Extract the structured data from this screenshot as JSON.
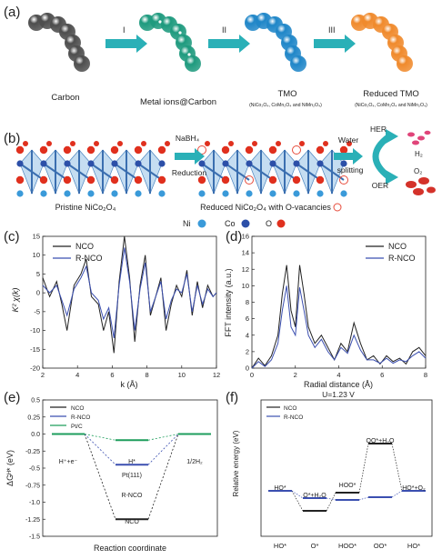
{
  "panels": {
    "a": {
      "label": "(a)",
      "steps": [
        "I",
        "II",
        "III"
      ],
      "stages": [
        {
          "name": "Carbon",
          "sub": ""
        },
        {
          "name": "Metal ions@Carbon",
          "sub": ""
        },
        {
          "name": "TMO",
          "sub": "(NiCo₂O₄, CoMn₂O₄ and NiMn₂O₄)"
        },
        {
          "name": "Reduced TMO",
          "sub": "(NiCo₂O₄, CoMn₂O₄ and NiMn₂O₄)"
        }
      ],
      "colors": {
        "carbon": "#4d4d4d",
        "metal": "#1e9a7e",
        "tmo": "#1f86c8",
        "reduced": "#f08a2c",
        "arrow": "#2ab0b7"
      }
    },
    "b": {
      "label": "(b)",
      "pristine": "Pristine NiCo₂O₄",
      "reduced": "Reduced NiCo₂O₄ with O-vacancies",
      "reagent1": "NaBH₄",
      "reagent2": "Reduction",
      "water1": "Water",
      "water2": "splitting",
      "her": "HER",
      "oer": "OER",
      "h2": "H₂",
      "o2": "O₂",
      "legend": {
        "ni": "Ni",
        "co": "Co",
        "o": "O"
      }
    },
    "c": {
      "label": "(c)",
      "ylabel": "K² χ(k)",
      "xlabel": "k (Å)",
      "legend": [
        "NCO",
        "R-NCO"
      ]
    },
    "d": {
      "label": "(d)",
      "ylabel": "FFT intensity (a.u.)",
      "xlabel": "Radial distance (Å)",
      "legend": [
        "NCO",
        "R-NCO"
      ]
    },
    "e": {
      "label": "(e)",
      "ylabel": "ΔGᴴ* (eV)",
      "xlabel": "Reaction coordinate",
      "legend": [
        "NCO",
        "R-NCO",
        "Pt/C"
      ],
      "annotations": {
        "start": "H⁺+e⁻",
        "mid": "H*",
        "end": "1/2H₂",
        "pt": "Pt(111)",
        "rnco": "R-NCO",
        "nco": "NCO"
      }
    },
    "f": {
      "label": "(f)",
      "title": "U=1.23 V",
      "ylabel": "Relative energy (eV)",
      "legend": [
        "NCO",
        "R-NCO"
      ],
      "annotations": {
        "ho": "HO*",
        "o": "O*+H₂O",
        "hoo": "HOO*",
        "oo": "OO*+H₂O",
        "end": "HO*+O₂"
      }
    }
  },
  "chart_data": [
    {
      "type": "line",
      "panel": "c",
      "xlabel": "k (Å)",
      "ylabel": "K² χ(k)",
      "xlim": [
        2,
        12
      ],
      "ylim": [
        -20,
        15
      ],
      "xticks": [
        2,
        4,
        6,
        8,
        10,
        12
      ],
      "yticks": [
        -20,
        -15,
        -10,
        -5,
        0,
        5,
        10,
        15
      ],
      "legend_position": "top-left",
      "series": [
        {
          "name": "NCO",
          "color": "#222222",
          "x": [
            2.0,
            2.4,
            2.8,
            3.1,
            3.4,
            3.8,
            4.2,
            4.5,
            4.8,
            5.2,
            5.5,
            5.8,
            6.1,
            6.4,
            6.7,
            7.0,
            7.3,
            7.6,
            7.9,
            8.2,
            8.5,
            8.8,
            9.1,
            9.4,
            9.7,
            10.0,
            10.3,
            10.6,
            10.9,
            11.2,
            11.5,
            11.8,
            12.0
          ],
          "y": [
            4,
            -1,
            3,
            -3,
            -10,
            2,
            5,
            9,
            -1,
            -3,
            -10,
            -5,
            -16,
            3,
            15,
            4,
            -13,
            2,
            10,
            -6,
            -1,
            4,
            -10,
            -3,
            2,
            -1,
            6,
            -6,
            3,
            -4,
            2,
            -1,
            0
          ]
        },
        {
          "name": "R-NCO",
          "color": "#3b4fb0",
          "x": [
            2.0,
            2.4,
            2.8,
            3.1,
            3.4,
            3.8,
            4.2,
            4.5,
            4.8,
            5.2,
            5.5,
            5.8,
            6.1,
            6.4,
            6.7,
            7.0,
            7.3,
            7.6,
            7.9,
            8.2,
            8.5,
            8.8,
            9.1,
            9.4,
            9.7,
            10.0,
            10.3,
            10.6,
            10.9,
            11.2,
            11.5,
            11.8,
            12.0
          ],
          "y": [
            2,
            0,
            2,
            -2,
            -6,
            1,
            4,
            7,
            0,
            -2,
            -7,
            -4,
            -12,
            2,
            12,
            3,
            -10,
            1,
            8,
            -5,
            -1,
            3,
            -7,
            -2,
            1,
            0,
            5,
            -5,
            2,
            -3,
            1,
            -1,
            0
          ]
        }
      ]
    },
    {
      "type": "line",
      "panel": "d",
      "xlabel": "Radial distance (Å)",
      "ylabel": "FFT intensity (a.u.)",
      "xlim": [
        0,
        8
      ],
      "ylim": [
        0,
        16
      ],
      "xticks": [
        0,
        2,
        4,
        6,
        8
      ],
      "yticks": [
        0,
        2,
        4,
        6,
        8,
        10,
        12,
        14,
        16
      ],
      "legend_position": "top-right",
      "series": [
        {
          "name": "NCO",
          "color": "#222222",
          "x": [
            0.0,
            0.3,
            0.6,
            0.9,
            1.2,
            1.4,
            1.6,
            1.8,
            2.0,
            2.2,
            2.4,
            2.6,
            2.9,
            3.2,
            3.5,
            3.8,
            4.1,
            4.4,
            4.7,
            5.0,
            5.3,
            5.6,
            5.9,
            6.2,
            6.5,
            6.8,
            7.1,
            7.4,
            7.7,
            8.0
          ],
          "y": [
            0,
            1.2,
            0.3,
            1.5,
            4,
            9,
            12.5,
            7,
            5,
            12.5,
            9,
            5,
            3,
            4,
            2.5,
            1,
            3,
            2,
            5.5,
            3,
            1,
            1.5,
            0.5,
            1.5,
            0.8,
            1.2,
            0.5,
            2,
            2.5,
            1.5
          ]
        },
        {
          "name": "R-NCO",
          "color": "#3b4fb0",
          "x": [
            0.0,
            0.3,
            0.6,
            0.9,
            1.2,
            1.4,
            1.6,
            1.8,
            2.0,
            2.2,
            2.4,
            2.6,
            2.9,
            3.2,
            3.5,
            3.8,
            4.1,
            4.4,
            4.7,
            5.0,
            5.3,
            5.6,
            5.9,
            6.2,
            6.5,
            6.8,
            7.1,
            7.4,
            7.7,
            8.0
          ],
          "y": [
            0,
            0.8,
            0.2,
            1,
            3,
            7,
            10,
            5,
            4,
            9.8,
            7,
            4,
            2.5,
            3.5,
            2,
            1,
            2.5,
            1.8,
            4,
            2.2,
            1,
            1,
            0.6,
            1.2,
            0.6,
            1,
            0.8,
            1.5,
            2,
            1.2
          ]
        }
      ]
    },
    {
      "type": "line",
      "panel": "e",
      "xlabel": "Reaction coordinate",
      "ylabel": "ΔGᴴ* (eV)",
      "ylim": [
        -1.5,
        0.5
      ],
      "yticks": [
        -1.5,
        -1.25,
        -1.0,
        -0.75,
        -0.5,
        -0.25,
        0.0,
        0.25,
        0.5
      ],
      "legend_position": "top-left",
      "states": [
        "H⁺+e⁻",
        "H*",
        "1/2H₂"
      ],
      "series": [
        {
          "name": "NCO",
          "color": "#222222",
          "values": [
            0,
            -1.25,
            0
          ]
        },
        {
          "name": "R-NCO",
          "color": "#3b4fb0",
          "values": [
            0,
            -0.45,
            0
          ]
        },
        {
          "name": "Pt/C",
          "color": "#1d9e5c",
          "values": [
            0,
            -0.09,
            0
          ]
        }
      ]
    },
    {
      "type": "line",
      "panel": "f",
      "title": "U=1.23 V",
      "ylabel": "Relative energy (eV)",
      "categories": [
        "HO*",
        "O*",
        "HOO*",
        "OO*",
        "HO*"
      ],
      "ylim": [
        -0.5,
        1.0
      ],
      "legend_position": "top-left",
      "series": [
        {
          "name": "NCO",
          "color": "#222222",
          "values": [
            0,
            -0.22,
            -0.02,
            0.52,
            0
          ]
        },
        {
          "name": "R-NCO",
          "color": "#3b4fb0",
          "values": [
            0,
            -0.08,
            -0.1,
            -0.07,
            0
          ]
        }
      ]
    }
  ]
}
